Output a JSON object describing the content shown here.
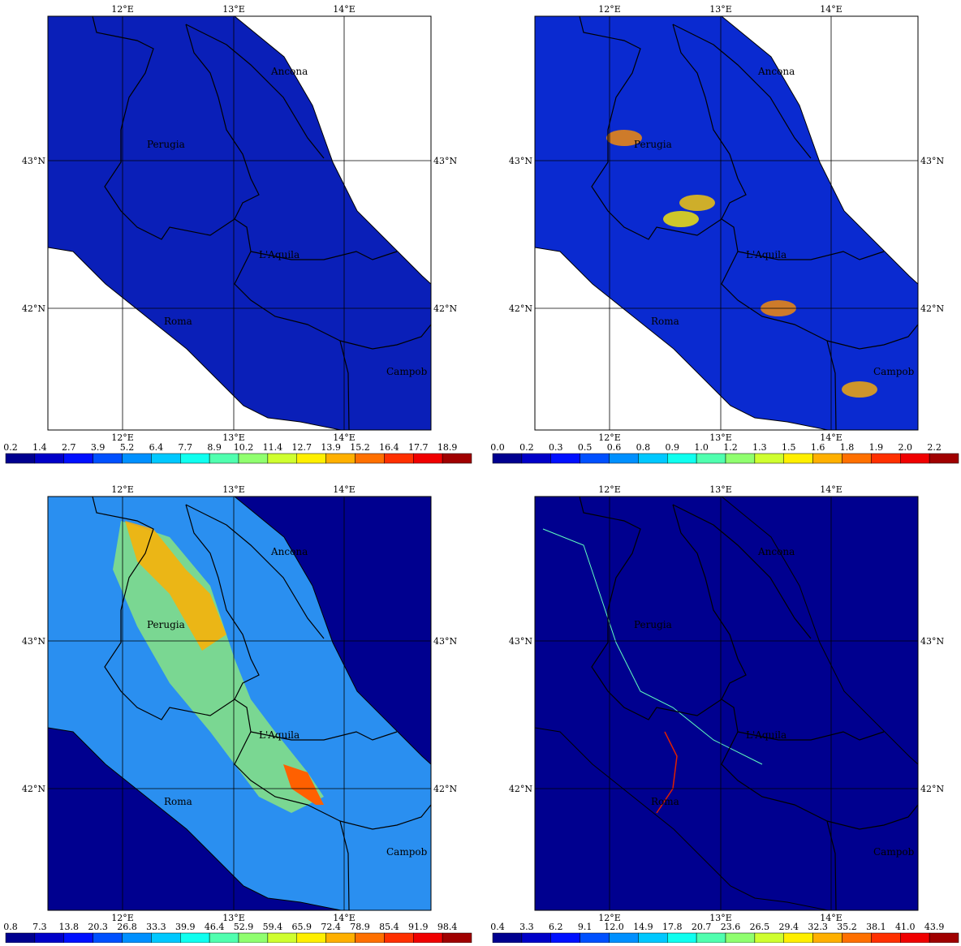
{
  "panels": [
    {
      "colorbar": [
        "0.2",
        "1.4",
        "2.7",
        "3.9",
        "5.2",
        "6.4",
        "7.7",
        "8.9",
        "10.2",
        "11.4",
        "12.7",
        "13.9",
        "15.2",
        "16.4",
        "17.7",
        "18.9"
      ]
    },
    {
      "colorbar": [
        "0.0",
        "0.2",
        "0.3",
        "0.5",
        "0.6",
        "0.8",
        "0.9",
        "1.0",
        "1.2",
        "1.3",
        "1.5",
        "1.6",
        "1.8",
        "1.9",
        "2.0",
        "2.2"
      ]
    },
    {
      "colorbar": [
        "0.8",
        "7.3",
        "13.8",
        "20.3",
        "26.8",
        "33.3",
        "39.9",
        "46.4",
        "52.9",
        "59.4",
        "65.9",
        "72.4",
        "78.9",
        "85.4",
        "91.9",
        "98.4"
      ]
    },
    {
      "colorbar": [
        "0.4",
        "3.3",
        "6.2",
        "9.1",
        "12.0",
        "14.9",
        "17.8",
        "20.7",
        "23.6",
        "26.5",
        "29.4",
        "32.3",
        "35.2",
        "38.1",
        "41.0",
        "43.9"
      ]
    }
  ],
  "lon_labels": [
    "12°E",
    "13°E",
    "14°E"
  ],
  "lat_labels": [
    "43°N",
    "42°N"
  ],
  "places": [
    "Ancona",
    "Perugia",
    "L'Aquila",
    "Roma",
    "Campob"
  ]
}
